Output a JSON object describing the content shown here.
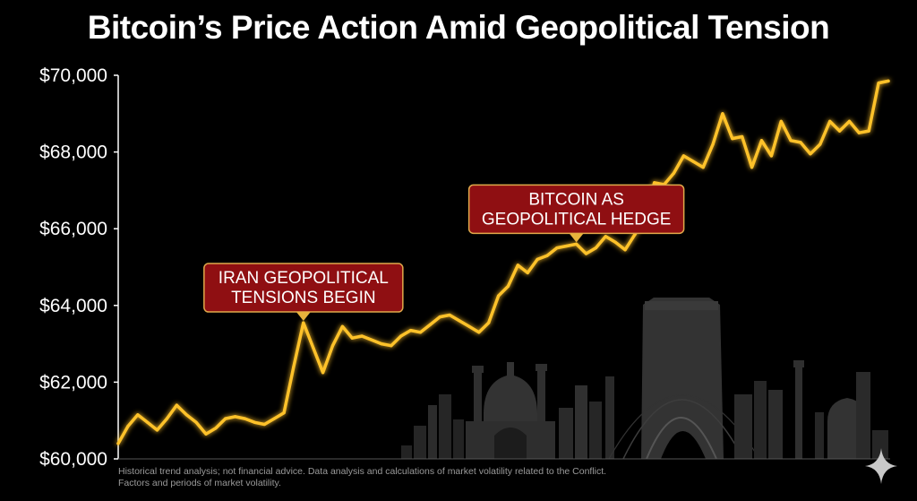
{
  "chart_data": {
    "type": "line",
    "title": "Bitcoin’s Price Action Amid Geopolitical Tension",
    "xlabel": "",
    "ylabel": "",
    "ylim": [
      60000,
      70000
    ],
    "yticks": [
      70000,
      68000,
      66000,
      64000,
      62000,
      60000
    ],
    "ytick_labels": [
      "$70,000",
      "$68,000",
      "$66,000",
      "$64,000",
      "$62,000",
      "$60,000"
    ],
    "x": [
      0,
      1,
      2,
      3,
      4,
      5,
      6,
      7,
      8,
      9,
      10,
      11,
      12,
      13,
      14,
      15,
      16,
      17,
      18,
      19,
      20,
      21,
      22,
      23,
      24,
      25,
      26,
      27,
      28,
      29,
      30,
      31,
      32,
      33,
      34,
      35,
      36,
      37,
      38,
      39,
      40,
      41,
      42,
      43,
      44,
      45,
      46,
      47,
      48,
      49,
      50,
      51,
      52,
      53,
      54,
      55,
      56,
      57,
      58,
      59,
      60,
      61,
      62,
      63,
      64,
      65,
      66,
      67,
      68,
      69,
      70,
      71,
      72,
      73,
      74,
      75,
      76,
      77,
      78,
      79
    ],
    "series": [
      {
        "values": [
          60400,
          60850,
          61150,
          60950,
          60750,
          61050,
          61400,
          61150,
          60950,
          60650,
          60800,
          61050,
          61100,
          61050,
          60950,
          60900,
          61050,
          61200,
          62400,
          63550,
          62900,
          62250,
          62950,
          63450,
          63150,
          63200,
          63100,
          63000,
          62950,
          63200,
          63350,
          63300,
          63500,
          63700,
          63750,
          63600,
          63450,
          63300,
          63550,
          64250,
          64500,
          65050,
          64850,
          65200,
          65300,
          65500,
          65550,
          65600,
          65350,
          65500,
          65800,
          65650,
          65450,
          65850,
          66300,
          67200,
          67150,
          67450,
          67900,
          67750,
          67600,
          68200,
          69000,
          68350,
          68400,
          67600,
          68300,
          67900,
          68800,
          68300,
          68250,
          67950,
          68200,
          68800,
          68550,
          68800,
          68500,
          68550,
          69800,
          69850
        ],
        "color": "#ffc229"
      }
    ],
    "annotations": [
      {
        "lines": [
          "IRAN GEOPOLITICAL",
          "TENSIONS BEGIN"
        ],
        "x": 19,
        "y": 63550
      },
      {
        "lines": [
          "BITCOIN AS",
          "GEOPOLITICAL HEDGE"
        ],
        "x": 47,
        "y": 65600
      }
    ],
    "grid": false,
    "legend": "none"
  },
  "footnote": {
    "line1": "Historical trend analysis; not financial advice. Data analysis and calculations of market volatility related to the Conflict.",
    "line2": "Factors and periods of market volatility."
  },
  "colors": {
    "line": "#ffc229",
    "annotation_fill": "#8f0f12",
    "annotation_border": "#e0a94a",
    "axis": "#ffffff"
  },
  "icons": {
    "corner": "sparkle-icon"
  }
}
